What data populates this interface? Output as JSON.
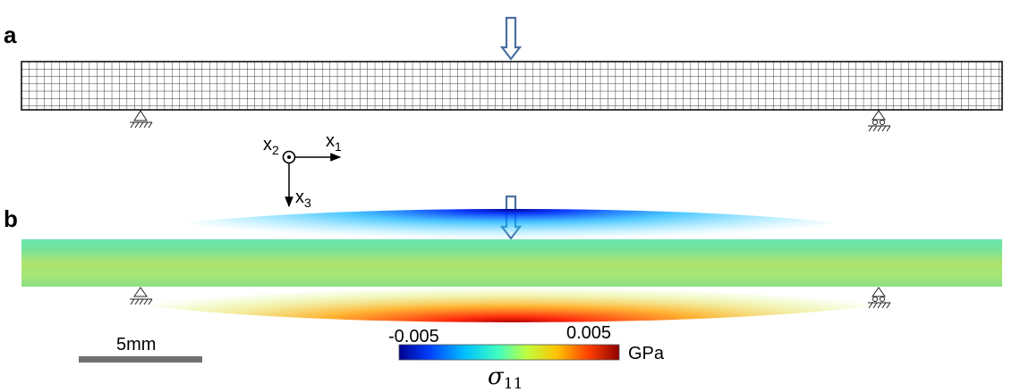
{
  "panel_a": {
    "label": "a"
  },
  "panel_b": {
    "label": "b"
  },
  "axes": {
    "x1_main": "x",
    "x1_sub": "1",
    "x2_main": "x",
    "x2_sub": "2",
    "x3_main": "x",
    "x3_sub": "3"
  },
  "colorbar": {
    "min_label": "-0.005",
    "max_label": "0.005",
    "unit": "GPa",
    "quantity_main": "σ",
    "quantity_sub": "11",
    "colors": [
      "#00008f",
      "#0040ff",
      "#00c0ff",
      "#40ffc0",
      "#c0ff40",
      "#ffc000",
      "#ff4000",
      "#8f0000"
    ]
  },
  "scale_bar": {
    "label": "5mm",
    "color": "#707070"
  },
  "icons": [
    "load-arrow-icon",
    "pin-support-icon",
    "roller-support-icon",
    "out-of-plane-axis-icon"
  ]
}
